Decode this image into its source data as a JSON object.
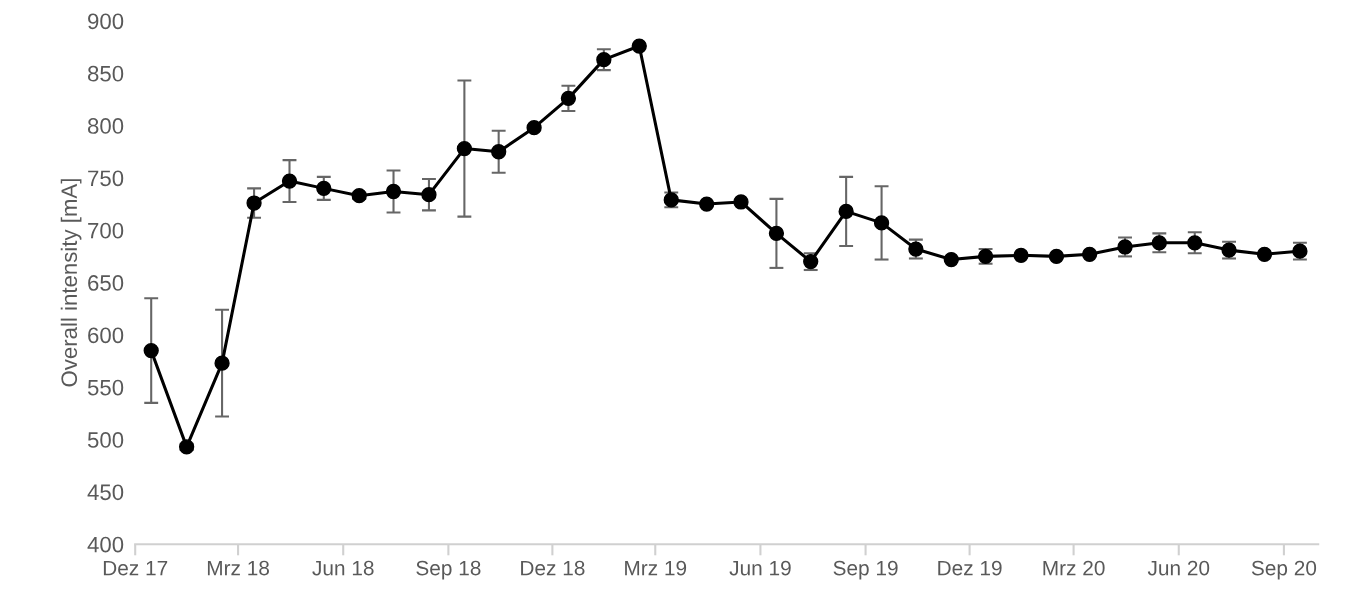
{
  "chart_data": {
    "type": "line",
    "ylabel": "Overall intensity [mA]",
    "x": [
      "2017-12-15",
      "2018-01-15",
      "2018-02-15",
      "2018-03-15",
      "2018-04-15",
      "2018-05-15",
      "2018-06-15",
      "2018-07-15",
      "2018-08-15",
      "2018-09-15",
      "2018-10-15",
      "2018-11-15",
      "2018-12-15",
      "2019-01-15",
      "2019-02-15",
      "2019-03-15",
      "2019-04-15",
      "2019-05-15",
      "2019-06-15",
      "2019-07-15",
      "2019-08-15",
      "2019-09-15",
      "2019-10-15",
      "2019-11-15",
      "2019-12-15",
      "2020-01-15",
      "2020-02-15",
      "2020-03-15",
      "2020-04-15",
      "2020-05-15",
      "2020-06-15",
      "2020-07-15",
      "2020-08-15",
      "2020-09-15"
    ],
    "series": [
      {
        "color": "#000000",
        "values": [
          585,
          493,
          573,
          726,
          747,
          740,
          733,
          737,
          734,
          778,
          775,
          798,
          826,
          863,
          876,
          729,
          725,
          727,
          697,
          670,
          718,
          707,
          682,
          672,
          675,
          676,
          675,
          677,
          684,
          688,
          688,
          681,
          677,
          680
        ],
        "errors": [
          50,
          3,
          51,
          14,
          20,
          11,
          3,
          20,
          15,
          65,
          20,
          null,
          12,
          10,
          null,
          7,
          null,
          null,
          33,
          8,
          33,
          35,
          9,
          null,
          7,
          null,
          null,
          null,
          9,
          9,
          10,
          8,
          null,
          8
        ]
      }
    ],
    "marker": "circle",
    "line_style": "solid",
    "grid": false,
    "legend": false,
    "ylim": [
      400,
      900
    ],
    "yticks": [
      400,
      450,
      500,
      550,
      600,
      650,
      700,
      750,
      800,
      850,
      900
    ],
    "xlim": [
      "2017-12-01",
      "2020-10-01"
    ],
    "xticks": [
      {
        "value": "2017-12-01",
        "label": "Dez 17"
      },
      {
        "value": "2018-03-01",
        "label": "Mrz 18"
      },
      {
        "value": "2018-06-01",
        "label": "Jun 18"
      },
      {
        "value": "2018-09-01",
        "label": "Sep 18"
      },
      {
        "value": "2018-12-01",
        "label": "Dez 18"
      },
      {
        "value": "2019-03-01",
        "label": "Mrz 19"
      },
      {
        "value": "2019-06-01",
        "label": "Jun 19"
      },
      {
        "value": "2019-09-01",
        "label": "Sep 19"
      },
      {
        "value": "2019-12-01",
        "label": "Dez 19"
      },
      {
        "value": "2020-03-01",
        "label": "Mrz 20"
      },
      {
        "value": "2020-06-01",
        "label": "Jun 20"
      },
      {
        "value": "2020-09-01",
        "label": "Sep 20"
      }
    ]
  }
}
